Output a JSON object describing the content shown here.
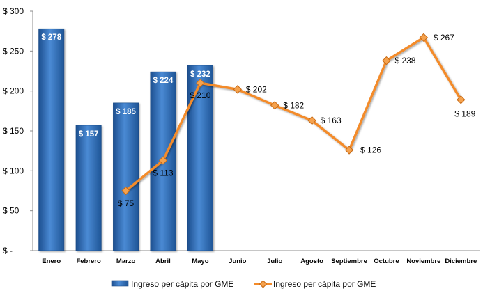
{
  "chart_data": {
    "type": "bar",
    "categories": [
      "Enero",
      "Febrero",
      "Marzo",
      "Abril",
      "Mayo",
      "Junio",
      "Julio",
      "Agosto",
      "Septiembre",
      "Octubre",
      "Noviembre",
      "Diciembre"
    ],
    "series": [
      {
        "name": "Ingreso per cápita por GME",
        "type": "bar",
        "color": "#2E6FB8",
        "values": [
          278,
          157,
          185,
          224,
          232,
          null,
          null,
          null,
          null,
          null,
          null,
          null
        ],
        "labels": [
          "$ 278",
          "$ 157",
          "$ 185",
          "$ 224",
          "$ 232",
          "",
          "",
          "",
          "",
          "",
          "",
          ""
        ]
      },
      {
        "name": "Ingreso per cápita por GME",
        "type": "line",
        "color": "#F38B2A",
        "values": [
          null,
          null,
          75,
          113,
          210,
          202,
          182,
          163,
          126,
          238,
          267,
          189
        ],
        "labels": [
          "",
          "",
          "$ 75",
          "$ 113",
          "$ 210",
          "$ 202",
          "$ 182",
          "$ 163",
          "$ 126",
          "$ 238",
          "$ 267",
          "$ 189"
        ]
      }
    ],
    "ylim": [
      0,
      300
    ],
    "yticks": [
      0,
      50,
      100,
      150,
      200,
      250,
      300
    ],
    "ytick_labels": [
      "$ -",
      "$ 50",
      "$ 100",
      "$ 150",
      "$ 200",
      "$ 250",
      "$ 300"
    ],
    "legend_position": "bottom",
    "grid": false
  }
}
